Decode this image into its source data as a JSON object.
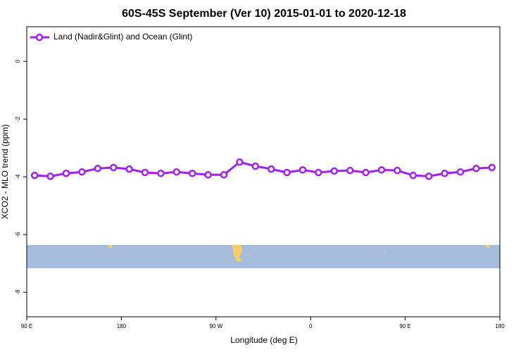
{
  "chart_data": {
    "type": "line",
    "title": "60S-45S September (Ver 10)   2015-01-01 to 2020-12-18",
    "x_label": "Longitude (deg E)",
    "y_label": "XCO2 - MLO trend (ppm)",
    "x": [
      97.5,
      112.5,
      127.5,
      142.5,
      157.5,
      172.5,
      187.5,
      202.5,
      217.5,
      232.5,
      247.5,
      262.5,
      277.5,
      292.5,
      307.5,
      322.5,
      337.5,
      352.5,
      367.5,
      382.5,
      397.5,
      412.5,
      427.5,
      442.5,
      457.5,
      472.5,
      487.5,
      502.5,
      517.5,
      532.5
    ],
    "series": [
      {
        "name": "Land (Nadir&Glint) and Ocean (Glint)",
        "color": "#a020f0",
        "values": [
          -3.95,
          -3.98,
          -3.88,
          -3.83,
          -3.71,
          -3.68,
          -3.73,
          -3.85,
          -3.88,
          -3.83,
          -3.88,
          -3.93,
          -3.93,
          -3.49,
          -3.63,
          -3.73,
          -3.85,
          -3.76,
          -3.85,
          -3.8,
          -3.78,
          -3.85,
          -3.76,
          -3.78,
          -3.95,
          -3.98,
          -3.88,
          -3.83,
          -3.71,
          -3.68
        ]
      }
    ],
    "xlim": [
      90,
      540
    ],
    "xticks": [
      {
        "value": 90,
        "label": "90 E"
      },
      {
        "value": 180,
        "label": "180"
      },
      {
        "value": 270,
        "label": "90 W"
      },
      {
        "value": 360,
        "label": "0"
      },
      {
        "value": 450,
        "label": "90 E"
      },
      {
        "value": 540,
        "label": "180"
      }
    ],
    "ylim": [
      -8.85,
      1.2
    ],
    "yticks": [
      0,
      -2,
      -4,
      -6,
      -8
    ],
    "legend": "top-left"
  }
}
